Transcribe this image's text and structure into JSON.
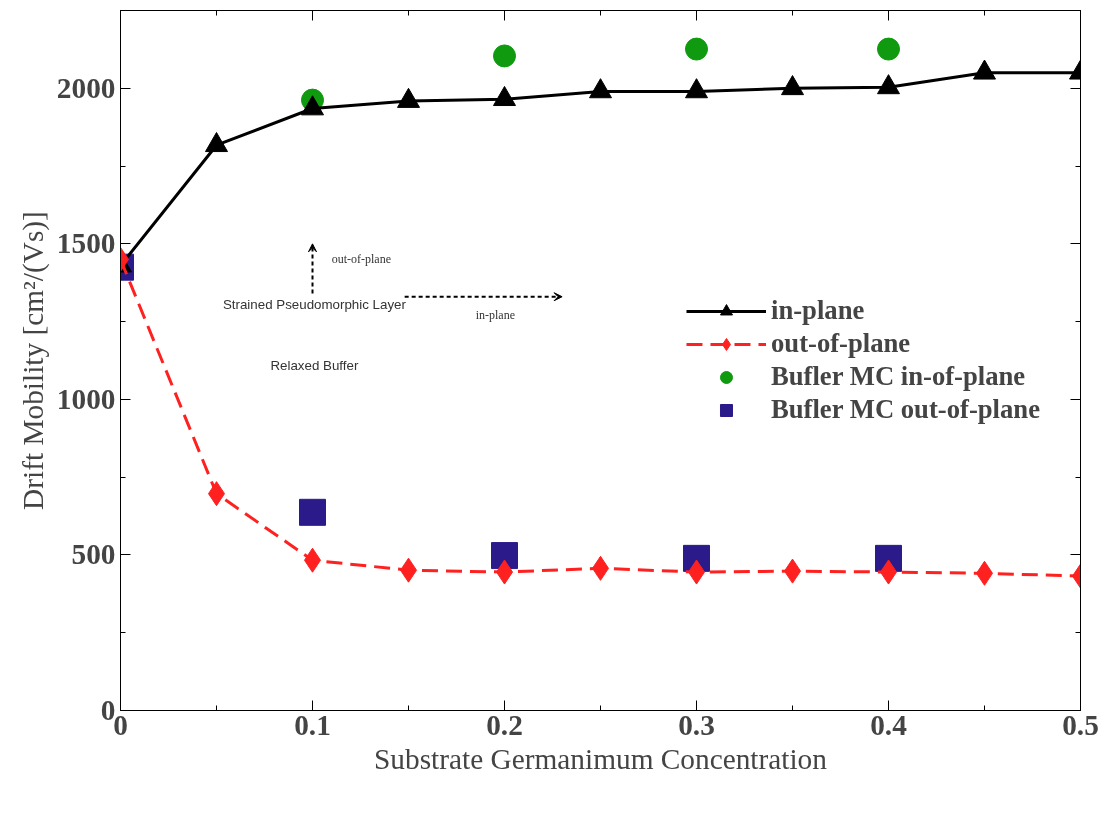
{
  "chart_data": {
    "type": "line",
    "xlabel": "Substrate Germanimum Concentration",
    "ylabel": "Drift Mobility [cm²/(Vs)]",
    "x": [
      0,
      0.05,
      0.1,
      0.15,
      0.2,
      0.25,
      0.3,
      0.35,
      0.4,
      0.45,
      0.5
    ],
    "series": [
      {
        "name": "in-plane",
        "color": "#000000",
        "marker": "triangle",
        "line_style": "solid",
        "values": [
          1430,
          1817,
          1935,
          1959,
          1965,
          1990,
          1990,
          2000,
          2003,
          2050,
          2050
        ]
      },
      {
        "name": "out-of-plane",
        "color": "#ff2020",
        "marker": "diamond",
        "line_style": "dashed",
        "values": [
          1450,
          697,
          483,
          451,
          445,
          457,
          445,
          448,
          445,
          441,
          432
        ]
      },
      {
        "name": "Bufler MC in-of-plane",
        "color": "#109a10",
        "type": "scatter",
        "marker": "circle",
        "x": [
          0.1,
          0.2,
          0.3,
          0.4
        ],
        "values": [
          1962,
          2104,
          2126,
          2126
        ]
      },
      {
        "name": "Bufler MC out-of-plane",
        "color": "#2a1a8a",
        "type": "scatter",
        "marker": "square",
        "x": [
          0,
          0.1,
          0.2,
          0.3,
          0.4
        ],
        "values": [
          1425,
          637,
          498,
          489,
          489
        ]
      }
    ],
    "xlim": [
      0,
      0.5
    ],
    "xticks": [
      0,
      0.1,
      0.2,
      0.3,
      0.4,
      0.5
    ],
    "ylim": [
      0,
      2250
    ],
    "yticks": [
      0,
      500,
      1000,
      1500,
      2000
    ],
    "legend": "right",
    "annotations": [
      "out-of-plane",
      "Strained Pseudomorphic Layer",
      "in-plane",
      "Relaxed Buffer"
    ]
  }
}
